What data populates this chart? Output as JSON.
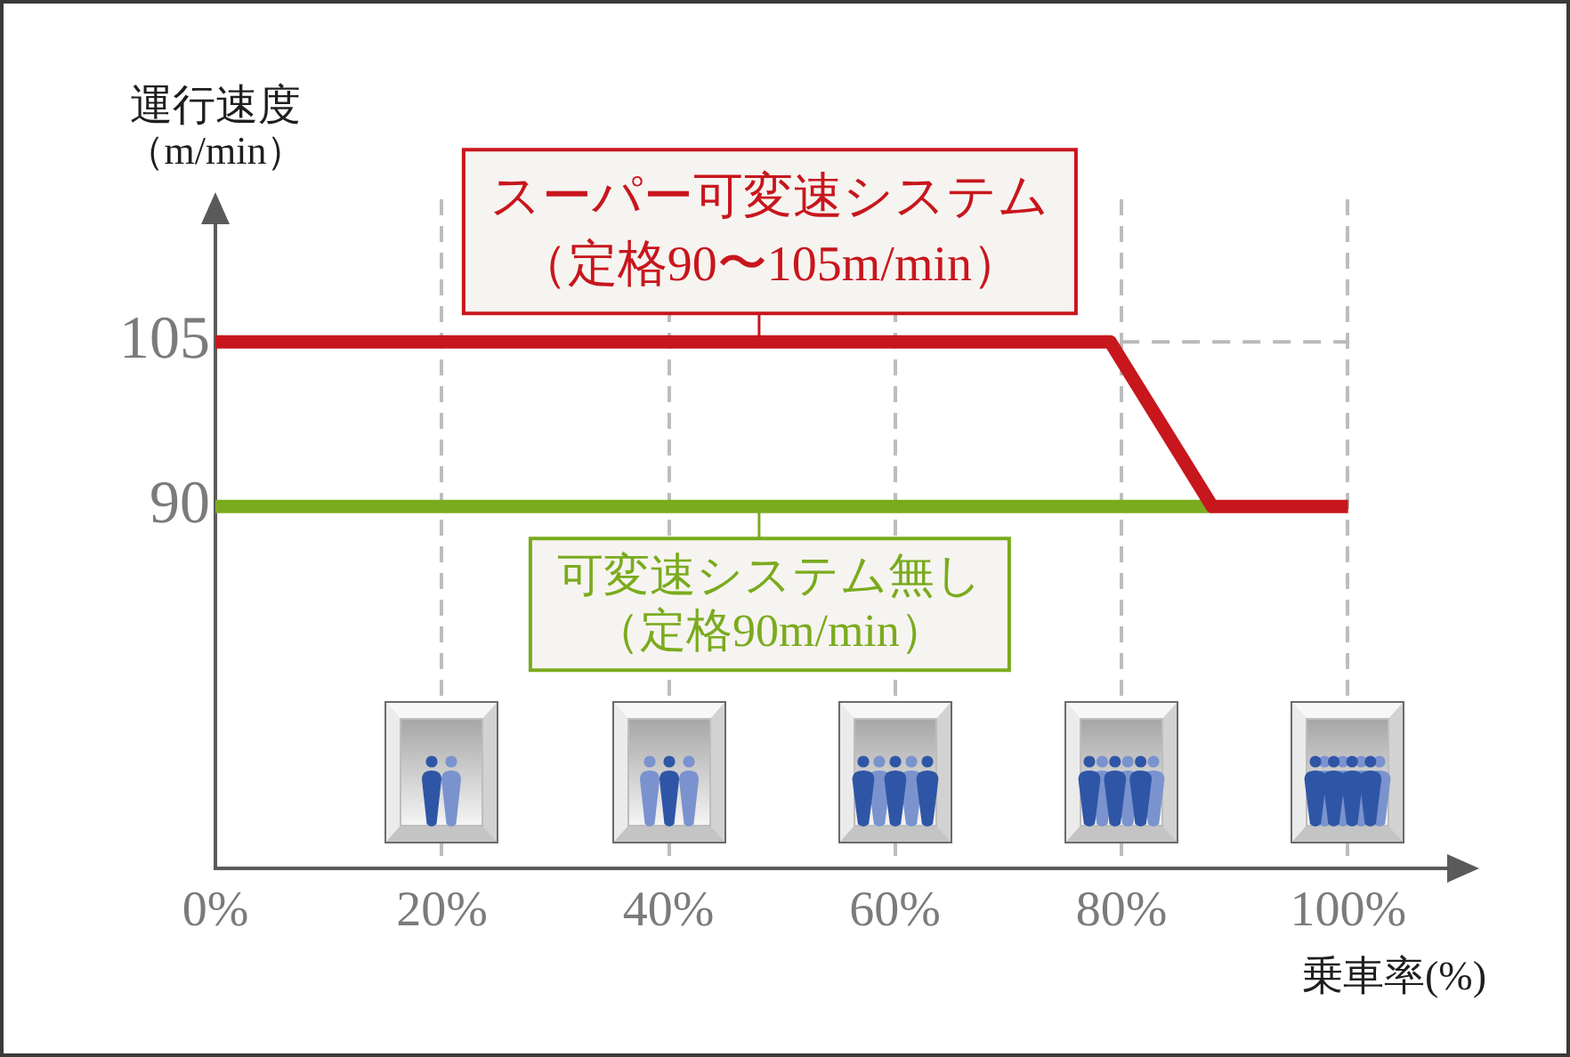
{
  "chart_data": {
    "type": "line",
    "xlabel": "乗車率(%)",
    "ylabel": "運行速度（m/min）",
    "xlim": [
      0,
      110
    ],
    "xticks": [
      {
        "value": 0,
        "label": "0%"
      },
      {
        "value": 20,
        "label": "20%"
      },
      {
        "value": 40,
        "label": "40%"
      },
      {
        "value": 60,
        "label": "60%"
      },
      {
        "value": 80,
        "label": "80%"
      },
      {
        "value": 100,
        "label": "100%"
      }
    ],
    "ylim": [
      57,
      118
    ],
    "yticks": [
      90,
      105
    ],
    "grid": "x",
    "series": [
      {
        "color": "#c8161d",
        "x": [
          0,
          79,
          88,
          100
        ],
        "values": [
          105,
          105,
          90,
          90
        ]
      },
      {
        "color": "#7aab1e",
        "x": [
          0,
          88
        ],
        "values": [
          90,
          90
        ]
      },
      {
        "color": "#b9b9b9",
        "line_style": "dashed",
        "x": [
          80,
          100
        ],
        "values": [
          105,
          105
        ]
      }
    ],
    "annotations": [
      {
        "text": "スーパー可変速システム（定格90〜105m/min）",
        "x": 48,
        "y": 105
      },
      {
        "text": "可変速システム無し（定格90m/min）",
        "x": 48,
        "y": 90
      }
    ]
  }
}
